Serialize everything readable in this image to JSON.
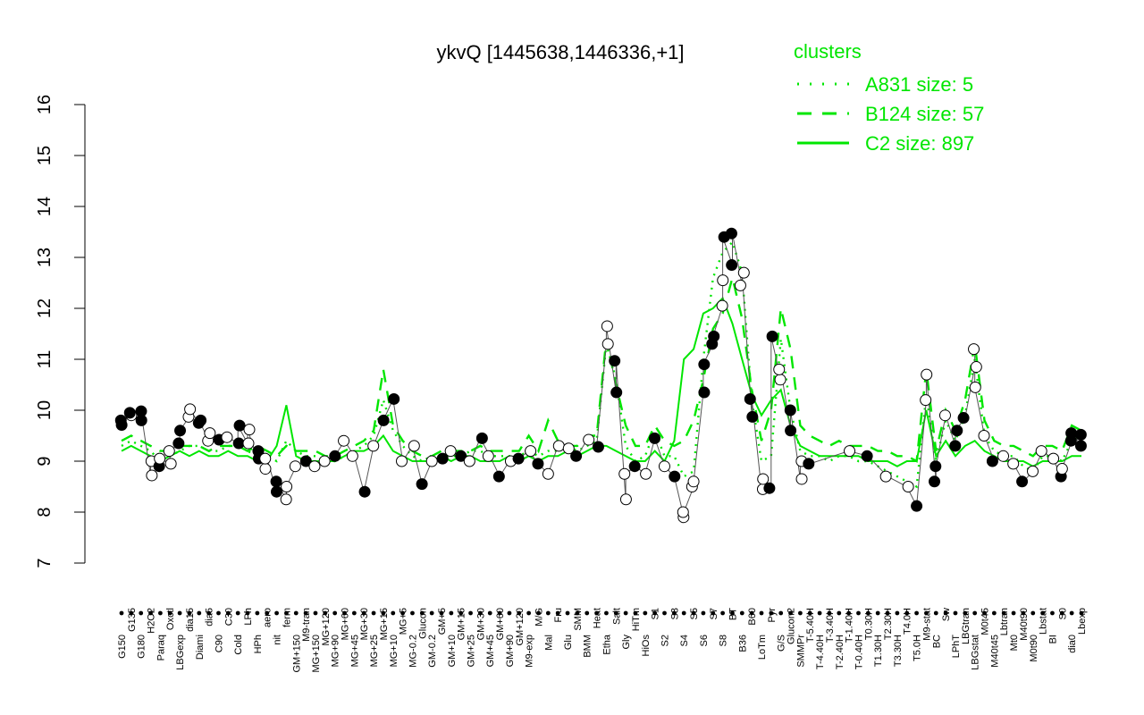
{
  "chart_data": {
    "type": "line",
    "title": "ykvQ [1445638,1446336,+1]",
    "xlabel": "",
    "ylabel": "",
    "ylim": [
      7,
      16
    ],
    "yticks": [
      7,
      8,
      9,
      10,
      11,
      12,
      13,
      14,
      15,
      16
    ],
    "categories": [
      "G150",
      "G135",
      "G180",
      "H2O2",
      "Paraq",
      "Oxctl",
      "LBGexp",
      "dia15",
      "Diami",
      "dia5",
      "C90",
      "C30",
      "Cold",
      "LPh",
      "HPh",
      "aero",
      "nit",
      "ferm",
      "GM+150",
      "M9-tran",
      "MG+150",
      "MG+120",
      "MG+90",
      "MG+60",
      "MG+45",
      "MG+30",
      "MG+25",
      "MG+15",
      "MG+10",
      "MG+5",
      "MG-0.2",
      "Glucon",
      "GM-0.2",
      "GM+5",
      "GM+10",
      "GM+15",
      "GM+25",
      "GM+30",
      "GM+45",
      "GM+60",
      "GM+90",
      "GM+120",
      "M9-exp",
      "M/G",
      "Mal",
      "Fru",
      "Glu",
      "SMM",
      "BMM",
      "Heat",
      "Etha",
      "Salt",
      "Gly",
      "HiTm",
      "HiOs",
      "S1",
      "S2",
      "S3",
      "S4",
      "S5",
      "S6",
      "S7",
      "S8",
      "BT",
      "B36",
      "B60",
      "LoTm",
      "Pyr",
      "G/S",
      "Glucon2",
      "SMMPr",
      "T-5.40H",
      "T-4.40H",
      "T-3.40H",
      "T-2.40H",
      "T-1.40H",
      "T-0.40H",
      "T0.30H",
      "T1.30H",
      "T2.30H",
      "T3.30H",
      "T4.0H",
      "T5.0H",
      "M9-stat",
      "BC",
      "Sw",
      "LPhT",
      "LBGtran",
      "LBGstat",
      "M0t45",
      "M40t45",
      "Lbtran",
      "Mt0",
      "M40t90",
      "M0t90",
      "Lbstat",
      "BI",
      "S0",
      "dia0",
      "Lbexp"
    ],
    "series": [
      {
        "name": "A831 size: 5",
        "values": [
          9.3,
          9.4,
          9.3,
          9.2,
          9.0,
          9.1,
          9.2,
          9.3,
          9.3,
          9.2,
          9.2,
          9.3,
          9.3,
          9.2,
          9.1,
          9.1,
          9.0,
          9.4,
          9.2,
          9.1,
          9.1,
          9.0,
          9.0,
          9.1,
          9.2,
          9.3,
          9.5,
          10.2,
          9.6,
          9.3,
          9.1,
          9.0,
          9.1,
          9.1,
          9.1,
          9.1,
          9.2,
          9.2,
          9.1,
          9.1,
          9.1,
          9.1,
          9.2,
          9.1,
          9.2,
          9.2,
          9.3,
          9.2,
          9.3,
          9.4,
          11.3,
          10.6,
          9.3,
          9.0,
          9.1,
          9.6,
          9.1,
          9.1,
          8.7,
          8.8,
          11.0,
          12.6,
          13.1,
          13.3,
          12.7,
          10.2,
          9.0,
          9.1,
          11.4,
          10.0,
          9.2,
          9.1,
          9.1,
          9.0,
          9.1,
          9.1,
          9.0,
          9.0,
          8.9,
          8.8,
          8.7,
          8.6,
          8.5,
          10.3,
          9.0,
          9.8,
          9.4,
          9.9,
          11.0,
          9.5,
          9.2,
          9.1,
          9.1,
          8.9,
          8.8,
          9.1,
          9.1,
          9.0,
          9.4,
          9.5
        ]
      },
      {
        "name": "B124 size: 57",
        "values": [
          9.4,
          9.5,
          9.4,
          9.3,
          9.2,
          9.2,
          9.3,
          9.3,
          9.3,
          9.2,
          9.3,
          9.3,
          9.3,
          9.2,
          9.3,
          9.2,
          9.1,
          9.3,
          9.2,
          9.2,
          9.2,
          9.1,
          9.1,
          9.2,
          9.3,
          9.4,
          9.6,
          10.8,
          9.7,
          9.4,
          9.2,
          9.1,
          9.1,
          9.2,
          9.2,
          9.2,
          9.2,
          9.3,
          9.2,
          9.2,
          9.2,
          9.2,
          9.5,
          9.2,
          9.8,
          9.4,
          9.3,
          9.3,
          9.5,
          9.5,
          11.4,
          10.5,
          9.7,
          9.3,
          9.3,
          9.7,
          9.4,
          9.3,
          9.4,
          9.8,
          10.6,
          11.6,
          11.9,
          12.6,
          11.8,
          10.4,
          9.4,
          10.0,
          12.0,
          11.2,
          9.7,
          9.5,
          9.4,
          9.3,
          9.4,
          9.3,
          9.3,
          9.3,
          9.2,
          9.2,
          9.1,
          9.1,
          9.0,
          10.8,
          9.2,
          10.0,
          9.6,
          10.2,
          11.3,
          9.8,
          9.4,
          9.3,
          9.3,
          9.2,
          9.1,
          9.3,
          9.3,
          9.2,
          9.7,
          9.6
        ]
      },
      {
        "name": "C2 size: 897",
        "values": [
          9.2,
          9.3,
          9.2,
          9.1,
          9.0,
          9.1,
          9.2,
          9.1,
          9.2,
          9.1,
          9.1,
          9.2,
          9.1,
          9.1,
          9.0,
          9.0,
          9.3,
          10.1,
          9.1,
          9.0,
          9.0,
          9.0,
          9.0,
          9.1,
          9.2,
          9.2,
          9.3,
          9.5,
          9.2,
          9.1,
          9.0,
          9.0,
          9.0,
          9.1,
          9.0,
          9.1,
          9.1,
          9.0,
          9.0,
          9.0,
          9.1,
          9.0,
          9.1,
          9.0,
          9.1,
          9.1,
          9.2,
          9.1,
          9.2,
          9.3,
          9.3,
          9.2,
          9.1,
          9.0,
          9.0,
          9.2,
          9.0,
          9.4,
          11.0,
          11.2,
          11.9,
          12.0,
          12.2,
          11.7,
          11.0,
          10.3,
          9.9,
          10.2,
          10.4,
          9.7,
          9.3,
          9.2,
          9.1,
          9.1,
          9.1,
          9.1,
          9.1,
          9.0,
          9.0,
          9.0,
          8.9,
          9.0,
          9.0,
          10.0,
          9.1,
          9.4,
          9.1,
          9.3,
          9.4,
          9.2,
          9.1,
          9.0,
          9.0,
          9.0,
          8.9,
          9.0,
          9.0,
          9.0,
          9.1,
          9.1
        ]
      }
    ],
    "points": [
      {
        "x": "G150",
        "y": 9.71,
        "filled": true
      },
      {
        "x": "G150",
        "y": 9.8,
        "filled": true
      },
      {
        "x": "G135",
        "y": 9.9,
        "filled": false
      },
      {
        "x": "G135",
        "y": 9.95,
        "filled": true
      },
      {
        "x": "G180",
        "y": 9.8,
        "filled": true
      },
      {
        "x": "G180",
        "y": 9.98,
        "filled": true
      },
      {
        "x": "H2O2",
        "y": 8.72,
        "filled": false
      },
      {
        "x": "H2O2",
        "y": 9.0,
        "filled": false
      },
      {
        "x": "Paraq",
        "y": 8.9,
        "filled": true
      },
      {
        "x": "Paraq",
        "y": 9.05,
        "filled": false
      },
      {
        "x": "Oxctl",
        "y": 8.95,
        "filled": false
      },
      {
        "x": "Oxctl",
        "y": 9.2,
        "filled": false
      },
      {
        "x": "LBGexp",
        "y": 9.35,
        "filled": true
      },
      {
        "x": "LBGexp",
        "y": 9.6,
        "filled": true
      },
      {
        "x": "dia15",
        "y": 9.87,
        "filled": false
      },
      {
        "x": "dia15",
        "y": 10.02,
        "filled": false
      },
      {
        "x": "Diami",
        "y": 9.75,
        "filled": true
      },
      {
        "x": "Diami",
        "y": 9.8,
        "filled": true
      },
      {
        "x": "dia5",
        "y": 9.4,
        "filled": false
      },
      {
        "x": "dia5",
        "y": 9.55,
        "filled": false
      },
      {
        "x": "C90",
        "y": 9.42,
        "filled": true
      },
      {
        "x": "C30",
        "y": 9.47,
        "filled": false
      },
      {
        "x": "Cold",
        "y": 9.35,
        "filled": true
      },
      {
        "x": "Cold",
        "y": 9.7,
        "filled": true
      },
      {
        "x": "LPh",
        "y": 9.35,
        "filled": false
      },
      {
        "x": "LPh",
        "y": 9.62,
        "filled": false
      },
      {
        "x": "HPh",
        "y": 9.05,
        "filled": true
      },
      {
        "x": "HPh",
        "y": 9.2,
        "filled": true
      },
      {
        "x": "aero",
        "y": 8.85,
        "filled": false
      },
      {
        "x": "aero",
        "y": 9.05,
        "filled": false
      },
      {
        "x": "nit",
        "y": 8.4,
        "filled": true
      },
      {
        "x": "nit",
        "y": 8.6,
        "filled": true
      },
      {
        "x": "ferm",
        "y": 8.25,
        "filled": false
      },
      {
        "x": "ferm",
        "y": 8.5,
        "filled": false
      },
      {
        "x": "GM+150",
        "y": 8.9,
        "filled": false
      },
      {
        "x": "M9-tran",
        "y": 9.0,
        "filled": true
      },
      {
        "x": "MG+150",
        "y": 8.9,
        "filled": false
      },
      {
        "x": "MG+120",
        "y": 9.0,
        "filled": false
      },
      {
        "x": "MG+90",
        "y": 9.1,
        "filled": true
      },
      {
        "x": "MG+60",
        "y": 9.4,
        "filled": false
      },
      {
        "x": "MG+45",
        "y": 9.1,
        "filled": false
      },
      {
        "x": "MG+30",
        "y": 8.4,
        "filled": true
      },
      {
        "x": "MG+25",
        "y": 9.3,
        "filled": false
      },
      {
        "x": "MG+15",
        "y": 9.8,
        "filled": true
      },
      {
        "x": "MG+10",
        "y": 10.22,
        "filled": true
      },
      {
        "x": "MG+5",
        "y": 9.0,
        "filled": false
      },
      {
        "x": "MG-0.2",
        "y": 9.3,
        "filled": false
      },
      {
        "x": "Glucon",
        "y": 8.55,
        "filled": true
      },
      {
        "x": "GM-0.2",
        "y": 9.0,
        "filled": false
      },
      {
        "x": "GM+5",
        "y": 9.05,
        "filled": true
      },
      {
        "x": "GM+10",
        "y": 9.2,
        "filled": false
      },
      {
        "x": "GM+15",
        "y": 9.1,
        "filled": true
      },
      {
        "x": "GM+25",
        "y": 9.0,
        "filled": false
      },
      {
        "x": "GM+30",
        "y": 9.45,
        "filled": true
      },
      {
        "x": "GM+45",
        "y": 9.1,
        "filled": false
      },
      {
        "x": "GM+60",
        "y": 8.7,
        "filled": true
      },
      {
        "x": "GM+90",
        "y": 9.0,
        "filled": false
      },
      {
        "x": "GM+120",
        "y": 9.05,
        "filled": true
      },
      {
        "x": "M9-exp",
        "y": 9.2,
        "filled": false
      },
      {
        "x": "M/G",
        "y": 8.95,
        "filled": true
      },
      {
        "x": "Mal",
        "y": 8.75,
        "filled": false
      },
      {
        "x": "Fru",
        "y": 9.3,
        "filled": false
      },
      {
        "x": "Glu",
        "y": 9.25,
        "filled": false
      },
      {
        "x": "SMM",
        "y": 9.1,
        "filled": true
      },
      {
        "x": "BMM",
        "y": 9.42,
        "filled": false
      },
      {
        "x": "Heat",
        "y": 9.28,
        "filled": true
      },
      {
        "x": "Etha",
        "y": 11.3,
        "filled": false
      },
      {
        "x": "Etha",
        "y": 11.65,
        "filled": false
      },
      {
        "x": "Salt",
        "y": 10.35,
        "filled": true
      },
      {
        "x": "Salt",
        "y": 10.97,
        "filled": true
      },
      {
        "x": "Gly",
        "y": 8.25,
        "filled": false
      },
      {
        "x": "Gly",
        "y": 8.75,
        "filled": false
      },
      {
        "x": "HiTm",
        "y": 8.9,
        "filled": true
      },
      {
        "x": "HiOs",
        "y": 8.75,
        "filled": false
      },
      {
        "x": "S1",
        "y": 9.45,
        "filled": true
      },
      {
        "x": "S2",
        "y": 8.9,
        "filled": false
      },
      {
        "x": "S3",
        "y": 8.7,
        "filled": true
      },
      {
        "x": "S4",
        "y": 7.9,
        "filled": false
      },
      {
        "x": "S4",
        "y": 8.0,
        "filled": false
      },
      {
        "x": "S5",
        "y": 8.5,
        "filled": false
      },
      {
        "x": "S5",
        "y": 8.6,
        "filled": false
      },
      {
        "x": "S6",
        "y": 10.35,
        "filled": true
      },
      {
        "x": "S6",
        "y": 10.9,
        "filled": true
      },
      {
        "x": "S7",
        "y": 11.3,
        "filled": true
      },
      {
        "x": "S7",
        "y": 11.45,
        "filled": true
      },
      {
        "x": "S8",
        "y": 12.05,
        "filled": false
      },
      {
        "x": "S8",
        "y": 12.55,
        "filled": false
      },
      {
        "x": "S8",
        "y": 13.4,
        "filled": true
      },
      {
        "x": "BT",
        "y": 12.85,
        "filled": true
      },
      {
        "x": "BT",
        "y": 13.47,
        "filled": true
      },
      {
        "x": "B36",
        "y": 12.45,
        "filled": false
      },
      {
        "x": "B36",
        "y": 12.7,
        "filled": false
      },
      {
        "x": "B60",
        "y": 9.87,
        "filled": true
      },
      {
        "x": "B60",
        "y": 10.22,
        "filled": true
      },
      {
        "x": "LoTm",
        "y": 8.45,
        "filled": false
      },
      {
        "x": "LoTm",
        "y": 8.65,
        "filled": false
      },
      {
        "x": "Pyr",
        "y": 8.47,
        "filled": true
      },
      {
        "x": "Pyr",
        "y": 11.45,
        "filled": true
      },
      {
        "x": "G/S",
        "y": 10.6,
        "filled": false
      },
      {
        "x": "G/S",
        "y": 10.8,
        "filled": false
      },
      {
        "x": "Glucon2",
        "y": 9.6,
        "filled": true
      },
      {
        "x": "Glucon2",
        "y": 10.0,
        "filled": true
      },
      {
        "x": "SMMPr",
        "y": 8.65,
        "filled": false
      },
      {
        "x": "SMMPr",
        "y": 9.0,
        "filled": false
      },
      {
        "x": "T-5.40H",
        "y": 8.95,
        "filled": true
      },
      {
        "x": "T-1.40H",
        "y": 9.2,
        "filled": false
      },
      {
        "x": "T0.30H",
        "y": 9.1,
        "filled": true
      },
      {
        "x": "T2.30H",
        "y": 8.7,
        "filled": false
      },
      {
        "x": "T4.0H",
        "y": 8.5,
        "filled": false
      },
      {
        "x": "T5.0H",
        "y": 8.12,
        "filled": true
      },
      {
        "x": "M9-stat",
        "y": 10.2,
        "filled": false
      },
      {
        "x": "M9-stat",
        "y": 10.7,
        "filled": false
      },
      {
        "x": "BC",
        "y": 8.6,
        "filled": true
      },
      {
        "x": "BC",
        "y": 8.9,
        "filled": true
      },
      {
        "x": "Sw",
        "y": 9.9,
        "filled": false
      },
      {
        "x": "LPhT",
        "y": 9.3,
        "filled": true
      },
      {
        "x": "LPhT",
        "y": 9.6,
        "filled": true
      },
      {
        "x": "LBGtran",
        "y": 9.85,
        "filled": true
      },
      {
        "x": "LBGstat",
        "y": 10.85,
        "filled": false
      },
      {
        "x": "LBGstat",
        "y": 11.2,
        "filled": false
      },
      {
        "x": "LBGstat",
        "y": 10.45,
        "filled": false
      },
      {
        "x": "M0t45",
        "y": 9.5,
        "filled": false
      },
      {
        "x": "M40t45",
        "y": 9.0,
        "filled": true
      },
      {
        "x": "Lbtran",
        "y": 9.1,
        "filled": false
      },
      {
        "x": "Mt0",
        "y": 8.95,
        "filled": false
      },
      {
        "x": "M40t90",
        "y": 8.6,
        "filled": true
      },
      {
        "x": "M0t90",
        "y": 8.8,
        "filled": false
      },
      {
        "x": "Lbstat",
        "y": 9.2,
        "filled": false
      },
      {
        "x": "BI",
        "y": 9.05,
        "filled": false
      },
      {
        "x": "S0",
        "y": 8.7,
        "filled": true
      },
      {
        "x": "S0",
        "y": 8.85,
        "filled": false
      },
      {
        "x": "dia0",
        "y": 9.4,
        "filled": true
      },
      {
        "x": "dia0",
        "y": 9.55,
        "filled": true
      },
      {
        "x": "Lbexp",
        "y": 9.3,
        "filled": true
      },
      {
        "x": "Lbexp",
        "y": 9.52,
        "filled": true
      }
    ],
    "legend": {
      "title": "clusters",
      "placement": "top-right",
      "entries": [
        {
          "label": "A831 size: 5",
          "style": "dotted"
        },
        {
          "label": "B124 size: 57",
          "style": "dashed"
        },
        {
          "label": "C2 size: 897",
          "style": "solid"
        }
      ]
    },
    "series_color": "#00e600",
    "grid": false
  }
}
